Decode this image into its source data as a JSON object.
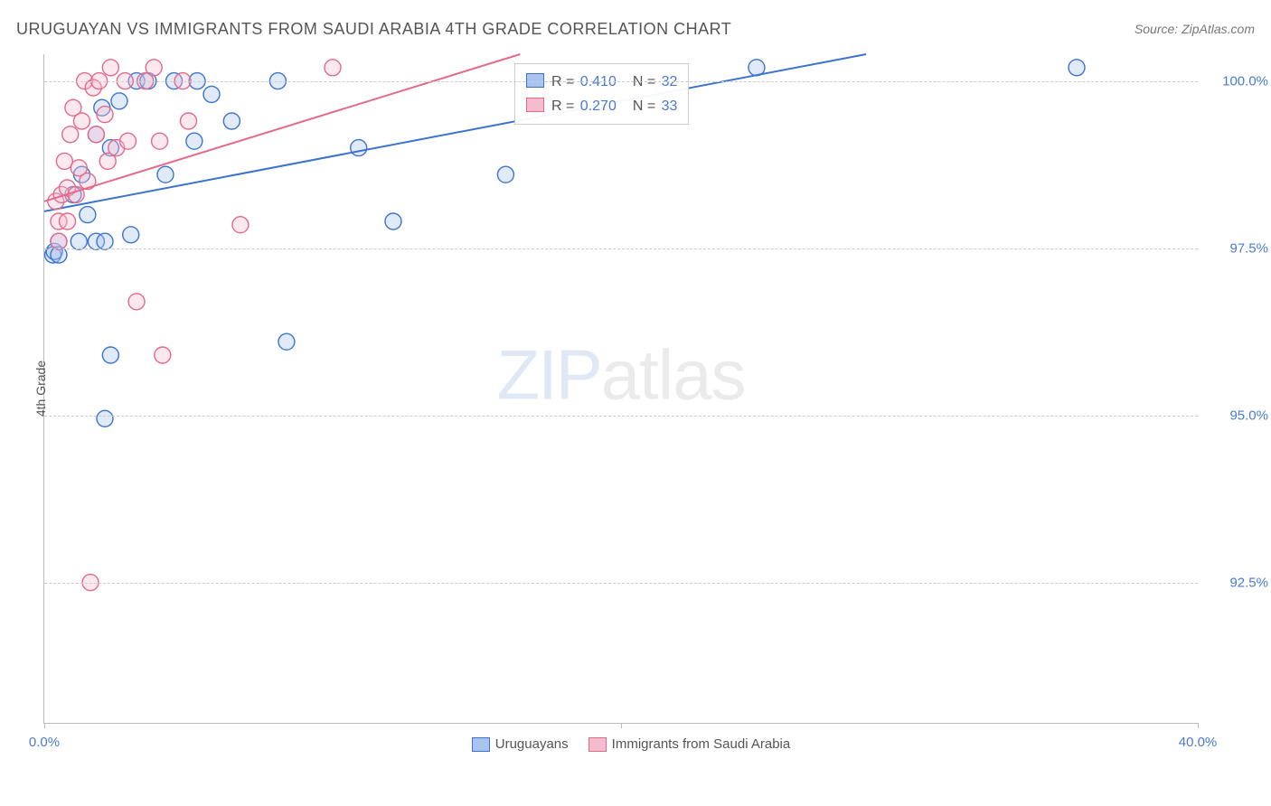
{
  "title": "URUGUAYAN VS IMMIGRANTS FROM SAUDI ARABIA 4TH GRADE CORRELATION CHART",
  "source": "Source: ZipAtlas.com",
  "ylabel": "4th Grade",
  "watermark_zip": "ZIP",
  "watermark_atlas": "atlas",
  "chart": {
    "type": "scatter-with-trendlines",
    "background_color": "#ffffff",
    "grid_color": "#cccccc",
    "axis_color": "#bbbbbb",
    "xlim": [
      0,
      40
    ],
    "ylim": [
      90.4,
      100.4
    ],
    "xticks": [
      {
        "value": 0,
        "label": "0.0%"
      },
      {
        "value": 20,
        "label": ""
      },
      {
        "value": 40,
        "label": "40.0%"
      }
    ],
    "xtick_marks": [
      0,
      20,
      40
    ],
    "yticks": [
      {
        "value": 92.5,
        "label": "92.5%"
      },
      {
        "value": 95.0,
        "label": "95.0%"
      },
      {
        "value": 97.5,
        "label": "97.5%"
      },
      {
        "value": 100.0,
        "label": "100.0%"
      }
    ],
    "marker_radius": 9,
    "marker_stroke_width": 1.4,
    "marker_fill_opacity": 0.35,
    "line_width": 2,
    "series": [
      {
        "key": "uruguayans",
        "label": "Uruguayans",
        "stroke": "#3b73d1",
        "fill": "#a8c3ef",
        "R_label": "R =",
        "R": "0.410",
        "N_label": "N =",
        "N": "32",
        "trendline": {
          "x1": 0,
          "y1": 98.05,
          "x2": 28.5,
          "y2": 100.4
        },
        "points": [
          [
            0.3,
            97.4
          ],
          [
            0.35,
            97.45
          ],
          [
            0.5,
            97.4
          ],
          [
            0.5,
            97.6
          ],
          [
            1.0,
            98.3
          ],
          [
            1.2,
            97.6
          ],
          [
            1.3,
            98.6
          ],
          [
            1.5,
            98.0
          ],
          [
            1.8,
            97.6
          ],
          [
            1.8,
            99.2
          ],
          [
            2.0,
            99.6
          ],
          [
            2.1,
            97.6
          ],
          [
            2.1,
            94.95
          ],
          [
            2.3,
            99.0
          ],
          [
            2.3,
            95.9
          ],
          [
            2.6,
            99.7
          ],
          [
            3.0,
            97.7
          ],
          [
            3.2,
            100.0
          ],
          [
            3.6,
            100.0
          ],
          [
            4.2,
            98.6
          ],
          [
            4.5,
            100.0
          ],
          [
            5.2,
            99.1
          ],
          [
            5.3,
            100.0
          ],
          [
            5.8,
            99.8
          ],
          [
            6.5,
            99.4
          ],
          [
            8.1,
            100.0
          ],
          [
            8.4,
            96.1
          ],
          [
            10.9,
            99.0
          ],
          [
            12.1,
            97.9
          ],
          [
            16.0,
            98.6
          ],
          [
            24.7,
            100.2
          ],
          [
            35.8,
            100.2
          ]
        ]
      },
      {
        "key": "saudi",
        "label": "Immigrants from Saudi Arabia",
        "stroke": "#e46a8a",
        "fill": "#f5bccd",
        "R_label": "R =",
        "R": "0.270",
        "N_label": "N =",
        "N": "33",
        "trendline": {
          "x1": 0,
          "y1": 98.2,
          "x2": 16.5,
          "y2": 100.4
        },
        "points": [
          [
            0.4,
            98.2
          ],
          [
            0.5,
            97.6
          ],
          [
            0.5,
            97.9
          ],
          [
            0.6,
            98.3
          ],
          [
            0.7,
            98.8
          ],
          [
            0.8,
            97.9
          ],
          [
            0.8,
            98.4
          ],
          [
            0.9,
            99.2
          ],
          [
            1.0,
            99.6
          ],
          [
            1.1,
            98.3
          ],
          [
            1.2,
            98.7
          ],
          [
            1.3,
            99.4
          ],
          [
            1.4,
            100.0
          ],
          [
            1.5,
            98.5
          ],
          [
            1.7,
            99.9
          ],
          [
            1.8,
            99.2
          ],
          [
            1.9,
            100.0
          ],
          [
            2.1,
            99.5
          ],
          [
            2.2,
            98.8
          ],
          [
            2.3,
            100.2
          ],
          [
            2.5,
            99.0
          ],
          [
            2.8,
            100.0
          ],
          [
            2.9,
            99.1
          ],
          [
            3.2,
            96.7
          ],
          [
            3.5,
            100.0
          ],
          [
            3.8,
            100.2
          ],
          [
            1.6,
            92.5
          ],
          [
            4.0,
            99.1
          ],
          [
            4.1,
            95.9
          ],
          [
            4.8,
            100.0
          ],
          [
            5.0,
            99.4
          ],
          [
            6.8,
            97.85
          ],
          [
            10.0,
            100.2
          ]
        ]
      }
    ]
  }
}
